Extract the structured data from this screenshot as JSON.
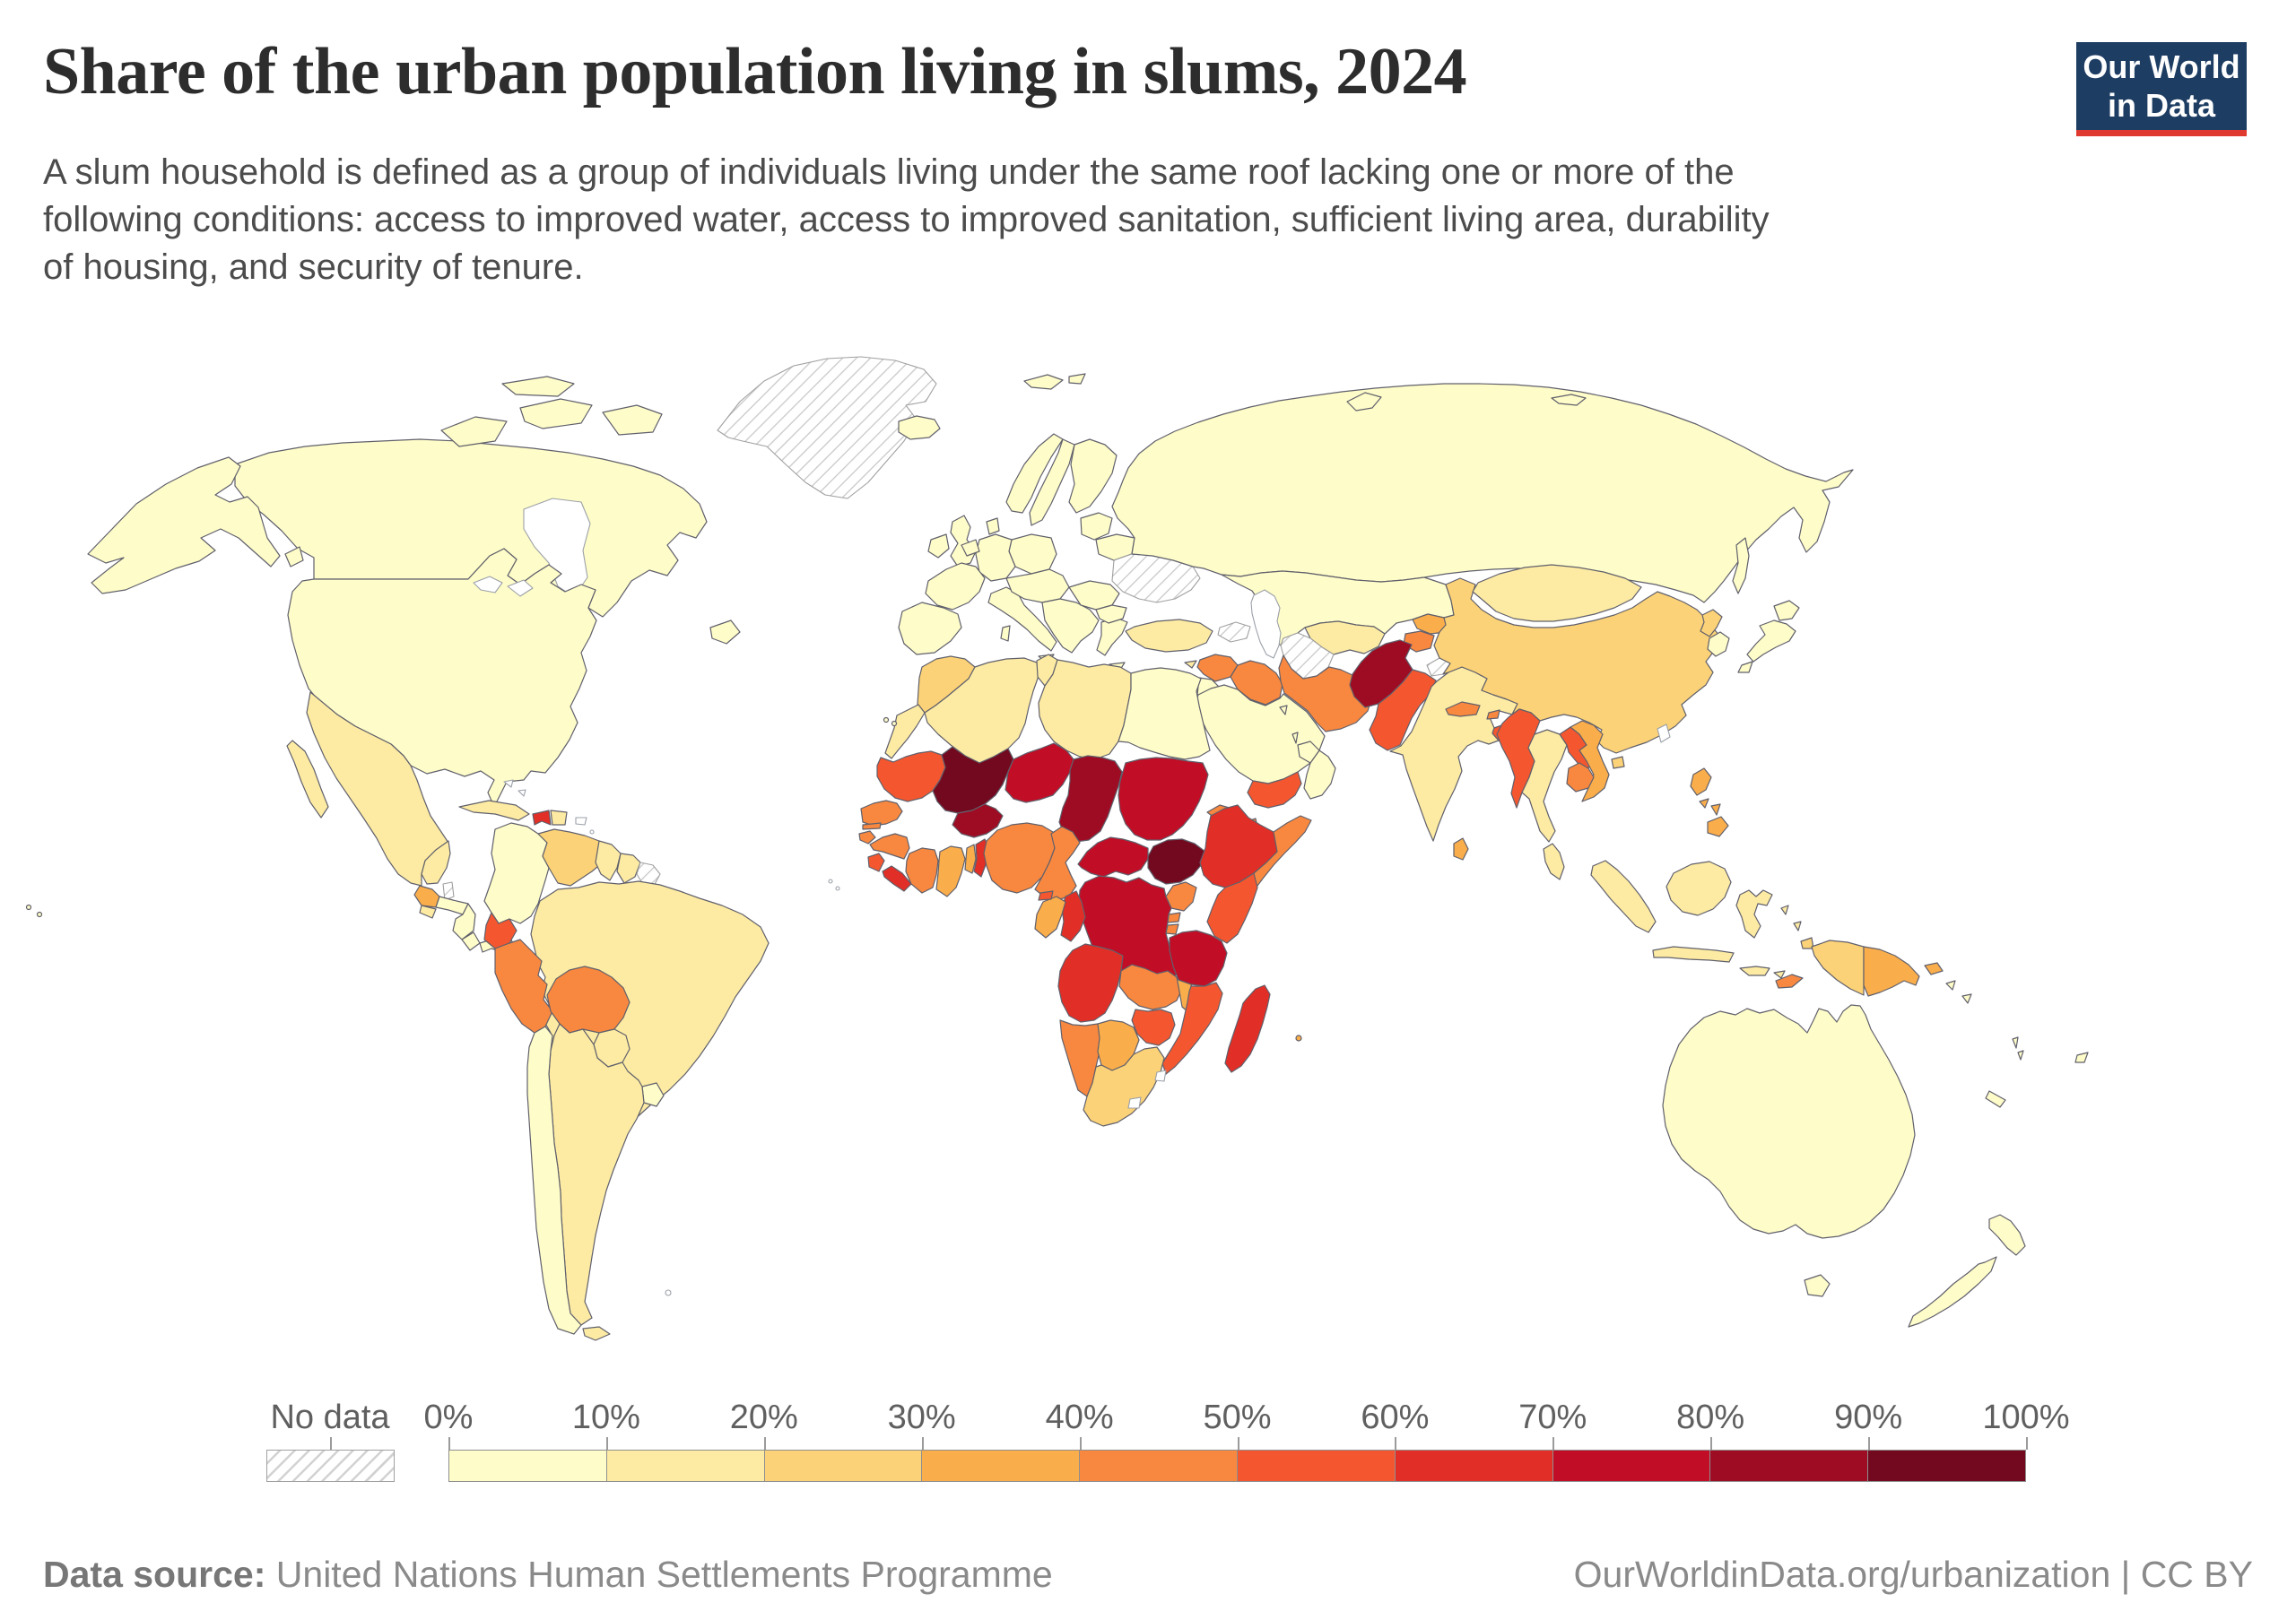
{
  "header": {
    "title": "Share of the urban population living in slums, 2024",
    "subtitle_lines": [
      "A slum household is defined as a group of individuals living under the same roof lacking one or more of the",
      "following conditions: access to improved water, access to improved sanitation, sufficient living area, durability",
      "of housing, and security of tenure."
    ],
    "logo": {
      "line1": "Our World",
      "line2": "in Data",
      "bg": "#1d3d63",
      "accent": "#e0392f"
    }
  },
  "legend": {
    "no_data_label": "No data",
    "tick_labels": [
      "0%",
      "10%",
      "20%",
      "30%",
      "40%",
      "50%",
      "60%",
      "70%",
      "80%",
      "90%",
      "100%"
    ],
    "colors": [
      "#FEFCC8",
      "#FDEBA3",
      "#FBD277",
      "#FAAD4B",
      "#F8883F",
      "#F4572F",
      "#E12E26",
      "#C10D26",
      "#9D0C23",
      "#72091F"
    ]
  },
  "footer": {
    "source_label": "Data source:",
    "source": "United Nations Human Settlements Programme",
    "right": "OurWorldinData.org/urbanization | CC BY"
  },
  "chart_data": {
    "type": "choropleth",
    "title": "Share of the urban population living in slums",
    "year": "2024",
    "unit": "% of urban population living in slum households",
    "bins": [
      "0-10%",
      "10-20%",
      "20-30%",
      "30-40%",
      "40-50%",
      "50-60%",
      "60-70%",
      "70-80%",
      "80-90%",
      "90-100%"
    ],
    "bin_colors": [
      "#FEFCC8",
      "#FDEBA3",
      "#FBD277",
      "#FAAD4B",
      "#F8883F",
      "#F4572F",
      "#E12E26",
      "#C10D26",
      "#9D0C23",
      "#72091F"
    ],
    "countries": {
      "canada": {
        "name": "Canada",
        "value": "0-10%",
        "color": "#FEFCC8"
      },
      "usa": {
        "name": "United States",
        "value": "0-10%",
        "color": "#FEFCC8"
      },
      "greenland": {
        "name": "Greenland",
        "value": "No data",
        "color": "no-data"
      },
      "mexico": {
        "name": "Mexico",
        "value": "10-20%",
        "color": "#FDEBA3"
      },
      "guatemala": {
        "name": "Guatemala",
        "value": "30-40%",
        "color": "#FAAD4B"
      },
      "belize": {
        "name": "Belize",
        "value": "No data",
        "color": "no-data"
      },
      "honduras": {
        "name": "Honduras",
        "value": "0-10%",
        "color": "#FEFCC8"
      },
      "el_salvador": {
        "name": "El Salvador",
        "value": "10-20%",
        "color": "#FDEBA3"
      },
      "nicaragua": {
        "name": "Nicaragua",
        "value": "0-10%",
        "color": "#FEFCC8"
      },
      "costa_rica": {
        "name": "Costa Rica",
        "value": "0-10%",
        "color": "#FEFCC8"
      },
      "panama": {
        "name": "Panama",
        "value": "0-10%",
        "color": "#FEFCC8"
      },
      "cuba": {
        "name": "Cuba",
        "value": "10-20%",
        "color": "#FDEBA3"
      },
      "jamaica": {
        "name": "Jamaica",
        "value": "20-30%",
        "color": "#FBD277"
      },
      "haiti": {
        "name": "Haiti",
        "value": "60-70%",
        "color": "#E12E26"
      },
      "dominican_republic": {
        "name": "Dominican Republic",
        "value": "10-20%",
        "color": "#FDEBA3"
      },
      "colombia": {
        "name": "Colombia",
        "value": "0-10%",
        "color": "#FEFCC8"
      },
      "venezuela": {
        "name": "Venezuela",
        "value": "20-30%",
        "color": "#FBD277"
      },
      "guyana": {
        "name": "Guyana",
        "value": "10-20%",
        "color": "#FDEBA3"
      },
      "suriname": {
        "name": "Suriname",
        "value": "10-20%",
        "color": "#FDEBA3"
      },
      "french_guiana": {
        "name": "French Guiana",
        "value": "No data",
        "color": "no-data"
      },
      "ecuador": {
        "name": "Ecuador",
        "value": "50-60%",
        "color": "#F4572F"
      },
      "peru": {
        "name": "Peru",
        "value": "40-50%",
        "color": "#F8883F"
      },
      "brazil": {
        "name": "Brazil",
        "value": "10-20%",
        "color": "#FDEBA3"
      },
      "bolivia": {
        "name": "Bolivia",
        "value": "40-50%",
        "color": "#F8883F"
      },
      "paraguay": {
        "name": "Paraguay",
        "value": "10-20%",
        "color": "#FDEBA3"
      },
      "chile": {
        "name": "Chile",
        "value": "0-10%",
        "color": "#FEFCC8"
      },
      "argentina": {
        "name": "Argentina",
        "value": "10-20%",
        "color": "#FDEBA3"
      },
      "uruguay": {
        "name": "Uruguay",
        "value": "0-10%",
        "color": "#FEFCC8"
      },
      "iceland": {
        "name": "Iceland",
        "value": "0-10%",
        "color": "#FEFCC8"
      },
      "svalbard": {
        "name": "Svalbard",
        "value": "0-10%",
        "color": "#FEFCC8"
      },
      "united_kingdom": {
        "name": "United Kingdom",
        "value": "0-10%",
        "color": "#FEFCC8"
      },
      "ireland": {
        "name": "Ireland",
        "value": "0-10%",
        "color": "#FEFCC8"
      },
      "norway": {
        "name": "Norway",
        "value": "0-10%",
        "color": "#FEFCC8"
      },
      "sweden": {
        "name": "Sweden",
        "value": "0-10%",
        "color": "#FEFCC8"
      },
      "finland": {
        "name": "Finland",
        "value": "0-10%",
        "color": "#FEFCC8"
      },
      "denmark": {
        "name": "Denmark",
        "value": "0-10%",
        "color": "#FEFCC8"
      },
      "baltic_states": {
        "name": "Baltic states",
        "value": "0-10%",
        "color": "#FEFCC8"
      },
      "poland": {
        "name": "Poland",
        "value": "0-10%",
        "color": "#FEFCC8"
      },
      "germany": {
        "name": "Germany",
        "value": "0-10%",
        "color": "#FEFCC8"
      },
      "benelux": {
        "name": "Benelux",
        "value": "0-10%",
        "color": "#FEFCC8"
      },
      "france": {
        "name": "France",
        "value": "0-10%",
        "color": "#FEFCC8"
      },
      "iberia": {
        "name": "Spain and Portugal",
        "value": "0-10%",
        "color": "#FEFCC8"
      },
      "italy": {
        "name": "Italy",
        "value": "0-10%",
        "color": "#FEFCC8"
      },
      "central_europe": {
        "name": "Central Europe",
        "value": "0-10%",
        "color": "#FEFCC8"
      },
      "balkans": {
        "name": "Balkans",
        "value": "0-10%",
        "color": "#FEFCC8"
      },
      "greece": {
        "name": "Greece",
        "value": "0-10%",
        "color": "#FEFCC8"
      },
      "romania": {
        "name": "Romania",
        "value": "0-10%",
        "color": "#FEFCC8"
      },
      "bulgaria": {
        "name": "Bulgaria",
        "value": "0-10%",
        "color": "#FEFCC8"
      },
      "belarus": {
        "name": "Belarus",
        "value": "0-10%",
        "color": "#FEFCC8"
      },
      "ukraine": {
        "name": "Ukraine",
        "value": "No data",
        "color": "no-data"
      },
      "turkey": {
        "name": "Turkey",
        "value": "10-20%",
        "color": "#FDEBA3"
      },
      "cyprus": {
        "name": "Cyprus",
        "value": "10-20%",
        "color": "#FDEBA3"
      },
      "caucasus": {
        "name": "Caucasus",
        "value": "No data",
        "color": "no-data"
      },
      "russia": {
        "name": "Russia",
        "value": "0-10%",
        "color": "#FEFCC8"
      },
      "kazakhstan": {
        "name": "Kazakhstan",
        "value": "0-10%",
        "color": "#FEFCC8"
      },
      "uzbekistan": {
        "name": "Uzbekistan",
        "value": "10-20%",
        "color": "#FDEBA3"
      },
      "turkmenistan": {
        "name": "Turkmenistan",
        "value": "No data",
        "color": "no-data"
      },
      "kyrgyzstan": {
        "name": "Kyrgyzstan",
        "value": "30-40%",
        "color": "#FAAD4B"
      },
      "tajikistan": {
        "name": "Tajikistan",
        "value": "40-50%",
        "color": "#F8883F"
      },
      "syria": {
        "name": "Syria",
        "value": "40-50%",
        "color": "#F8883F"
      },
      "jordan": {
        "name": "Jordan",
        "value": "0-10%",
        "color": "#FEFCC8"
      },
      "iraq": {
        "name": "Iraq",
        "value": "40-50%",
        "color": "#F8883F"
      },
      "iran": {
        "name": "Iran",
        "value": "40-50%",
        "color": "#F8883F"
      },
      "saudi_arabia": {
        "name": "Saudi Arabia",
        "value": "0-10%",
        "color": "#FEFCC8"
      },
      "yemen": {
        "name": "Yemen",
        "value": "50-60%",
        "color": "#F4572F"
      },
      "oman": {
        "name": "Oman",
        "value": "0-10%",
        "color": "#FEFCC8"
      },
      "uae": {
        "name": "United Arab Emirates",
        "value": "0-10%",
        "color": "#FEFCC8"
      },
      "qatar": {
        "name": "Qatar",
        "value": "0-10%",
        "color": "#FEFCC8"
      },
      "kuwait": {
        "name": "Kuwait",
        "value": "0-10%",
        "color": "#FEFCC8"
      },
      "morocco": {
        "name": "Morocco",
        "value": "20-30%",
        "color": "#FBD277"
      },
      "western_sahara": {
        "name": "Western Sahara",
        "value": "10-20%",
        "color": "#FDEBA3"
      },
      "algeria": {
        "name": "Algeria",
        "value": "10-20%",
        "color": "#FDEBA3"
      },
      "tunisia": {
        "name": "Tunisia",
        "value": "10-20%",
        "color": "#FDEBA3"
      },
      "libya": {
        "name": "Libya",
        "value": "10-20%",
        "color": "#FDEBA3"
      },
      "egypt": {
        "name": "Egypt",
        "value": "0-10%",
        "color": "#FEFCC8"
      },
      "mauritania": {
        "name": "Mauritania",
        "value": "50-60%",
        "color": "#F4572F"
      },
      "mali": {
        "name": "Mali",
        "value": "90-100%",
        "color": "#72091F"
      },
      "niger": {
        "name": "Niger",
        "value": "70-80%",
        "color": "#C10D26"
      },
      "chad": {
        "name": "Chad",
        "value": "80-90%",
        "color": "#9D0C23"
      },
      "sudan": {
        "name": "Sudan",
        "value": "70-80%",
        "color": "#C10D26"
      },
      "south_sudan": {
        "name": "South Sudan",
        "value": "90-100%",
        "color": "#72091F"
      },
      "eritrea": {
        "name": "Eritrea",
        "value": "40-50%",
        "color": "#F8883F"
      },
      "djibouti": {
        "name": "Djibouti",
        "value": "40-50%",
        "color": "#F8883F"
      },
      "senegal": {
        "name": "Senegal",
        "value": "40-50%",
        "color": "#F8883F"
      },
      "gambia": {
        "name": "Gambia",
        "value": "40-50%",
        "color": "#F8883F"
      },
      "guinea_bissau": {
        "name": "Guinea-Bissau",
        "value": "40-50%",
        "color": "#F8883F"
      },
      "guinea": {
        "name": "Guinea",
        "value": "40-50%",
        "color": "#F8883F"
      },
      "sierra_leone": {
        "name": "Sierra Leone",
        "value": "50-60%",
        "color": "#F4572F"
      },
      "liberia": {
        "name": "Liberia",
        "value": "60-70%",
        "color": "#E12E26"
      },
      "cote_divoire": {
        "name": "Cote d'Ivoire",
        "value": "40-50%",
        "color": "#F8883F"
      },
      "burkina_faso": {
        "name": "Burkina Faso",
        "value": "80-90%",
        "color": "#9D0C23"
      },
      "ghana": {
        "name": "Ghana",
        "value": "30-40%",
        "color": "#FAAD4B"
      },
      "togo": {
        "name": "Togo",
        "value": "30-40%",
        "color": "#FAAD4B"
      },
      "benin": {
        "name": "Benin",
        "value": "60-70%",
        "color": "#E12E26"
      },
      "nigeria": {
        "name": "Nigeria",
        "value": "40-50%",
        "color": "#F8883F"
      },
      "cameroon": {
        "name": "Cameroon",
        "value": "40-50%",
        "color": "#F8883F"
      },
      "central_african_republic": {
        "name": "Central African Republic",
        "value": "70-80%",
        "color": "#C10D26"
      },
      "ethiopia": {
        "name": "Ethiopia",
        "value": "60-70%",
        "color": "#E12E26"
      },
      "somalia": {
        "name": "Somalia",
        "value": "40-50%",
        "color": "#F8883F"
      },
      "kenya": {
        "name": "Kenya",
        "value": "50-60%",
        "color": "#F4572F"
      },
      "uganda": {
        "name": "Uganda",
        "value": "40-50%",
        "color": "#F8883F"
      },
      "rwanda": {
        "name": "Rwanda",
        "value": "40-50%",
        "color": "#F8883F"
      },
      "burundi": {
        "name": "Burundi",
        "value": "40-50%",
        "color": "#F8883F"
      },
      "drc": {
        "name": "Democratic Republic of Congo",
        "value": "70-80%",
        "color": "#C10D26"
      },
      "congo": {
        "name": "Congo",
        "value": "60-70%",
        "color": "#E12E26"
      },
      "gabon": {
        "name": "Gabon",
        "value": "30-40%",
        "color": "#FAAD4B"
      },
      "equatorial_guinea": {
        "name": "Equatorial Guinea",
        "value": "50-60%",
        "color": "#F4572F"
      },
      "angola": {
        "name": "Angola",
        "value": "60-70%",
        "color": "#E12E26"
      },
      "zambia": {
        "name": "Zambia",
        "value": "40-50%",
        "color": "#F8883F"
      },
      "malawi": {
        "name": "Malawi",
        "value": "30-40%",
        "color": "#FAAD4B"
      },
      "tanzania": {
        "name": "Tanzania",
        "value": "70-80%",
        "color": "#C10D26"
      },
      "mozambique": {
        "name": "Mozambique",
        "value": "50-60%",
        "color": "#F4572F"
      },
      "zimbabwe": {
        "name": "Zimbabwe",
        "value": "50-60%",
        "color": "#F4572F"
      },
      "namibia": {
        "name": "Namibia",
        "value": "40-50%",
        "color": "#F8883F"
      },
      "botswana": {
        "name": "Botswana",
        "value": "30-40%",
        "color": "#FAAD4B"
      },
      "south_africa": {
        "name": "South Africa",
        "value": "20-30%",
        "color": "#FBD277"
      },
      "madagascar": {
        "name": "Madagascar",
        "value": "60-70%",
        "color": "#E12E26"
      },
      "mauritius": {
        "name": "Mauritius",
        "value": "30-40%",
        "color": "#FAAD4B"
      },
      "canary_islands": {
        "name": "Canary Islands",
        "value": "0-10%",
        "color": "#FEFCC8"
      },
      "afghanistan": {
        "name": "Afghanistan",
        "value": "80-90%",
        "color": "#9D0C23"
      },
      "pakistan": {
        "name": "Pakistan",
        "value": "50-60%",
        "color": "#F4572F"
      },
      "kashmir": {
        "name": "Kashmir",
        "value": "No data",
        "color": "no-data"
      },
      "india": {
        "name": "India",
        "value": "10-20%",
        "color": "#FDEBA3"
      },
      "nepal": {
        "name": "Nepal",
        "value": "40-50%",
        "color": "#F8883F"
      },
      "bhutan": {
        "name": "Bhutan",
        "value": "40-50%",
        "color": "#F8883F"
      },
      "bangladesh": {
        "name": "Bangladesh",
        "value": "50-60%",
        "color": "#F4572F"
      },
      "sri_lanka": {
        "name": "Sri Lanka",
        "value": "30-40%",
        "color": "#FAAD4B"
      },
      "china": {
        "name": "China",
        "value": "20-30%",
        "color": "#FBD277"
      },
      "mongolia": {
        "name": "Mongolia",
        "value": "10-20%",
        "color": "#FDEBA3"
      },
      "north_korea": {
        "name": "North Korea",
        "value": "20-30%",
        "color": "#FBD277"
      },
      "south_korea": {
        "name": "South Korea",
        "value": "0-10%",
        "color": "#FEFCC8"
      },
      "japan": {
        "name": "Japan",
        "value": "0-10%",
        "color": "#FEFCC8"
      },
      "myanmar": {
        "name": "Myanmar",
        "value": "50-60%",
        "color": "#F4572F"
      },
      "thailand": {
        "name": "Thailand",
        "value": "10-20%",
        "color": "#FDEBA3"
      },
      "laos": {
        "name": "Laos",
        "value": "50-60%",
        "color": "#F4572F"
      },
      "vietnam": {
        "name": "Vietnam",
        "value": "30-40%",
        "color": "#FAAD4B"
      },
      "cambodia": {
        "name": "Cambodia",
        "value": "40-50%",
        "color": "#F8883F"
      },
      "malaysia": {
        "name": "Malaysia",
        "value": "10-20%",
        "color": "#FDEBA3"
      },
      "indonesia": {
        "name": "Indonesia",
        "value": "10-20%",
        "color": "#FDEBA3"
      },
      "west_papua": {
        "name": "Indonesia (Papua)",
        "value": "20-30%",
        "color": "#FBD277"
      },
      "timor_leste": {
        "name": "Timor-Leste",
        "value": "40-50%",
        "color": "#F8883F"
      },
      "philippines": {
        "name": "Philippines",
        "value": "30-40%",
        "color": "#FAAD4B"
      },
      "papua_new_guinea": {
        "name": "Papua New Guinea",
        "value": "30-40%",
        "color": "#FAAD4B"
      },
      "solomon_islands": {
        "name": "Solomon Islands",
        "value": "0-10%",
        "color": "#FEFCC8"
      },
      "vanuatu": {
        "name": "Vanuatu",
        "value": "0-10%",
        "color": "#FEFCC8"
      },
      "new_caledonia": {
        "name": "New Caledonia",
        "value": "0-10%",
        "color": "#FEFCC8"
      },
      "fiji": {
        "name": "Fiji",
        "value": "0-10%",
        "color": "#FEFCC8"
      },
      "australia": {
        "name": "Australia",
        "value": "0-10%",
        "color": "#FEFCC8"
      },
      "new_zealand": {
        "name": "New Zealand",
        "value": "0-10%",
        "color": "#FEFCC8"
      }
    }
  }
}
